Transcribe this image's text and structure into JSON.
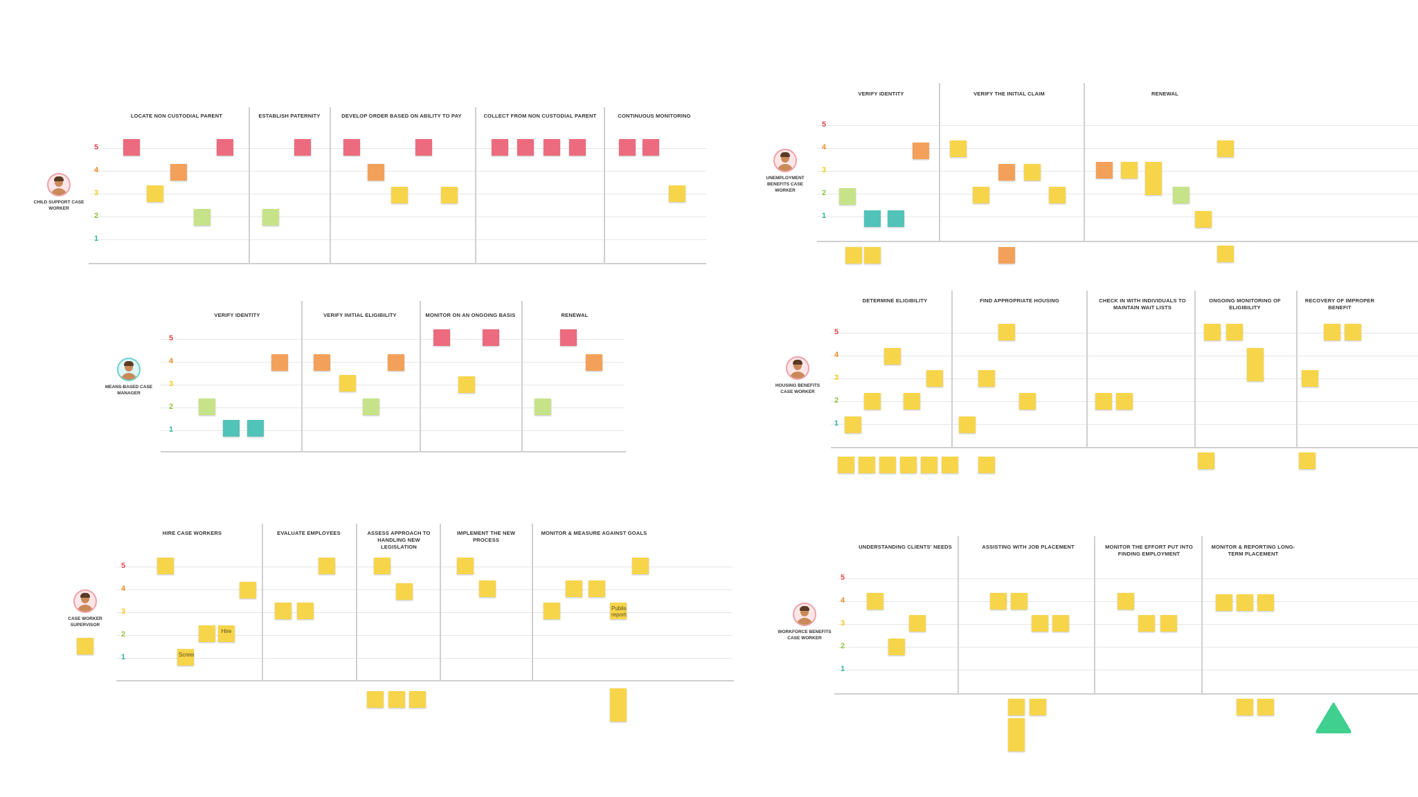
{
  "boards": {
    "b1": {
      "persona": "CHILD SUPPORT CASE WORKER",
      "stages": [
        "LOCATE NON CUSTODIAL PARENT",
        "ESTABLISH PATERNITY",
        "DEVELOP ORDER BASED ON ABILITY TO PAY",
        "COLLECT FROM NON CUSTODIAL PARENT",
        "CONTINUOUS MONITORING"
      ]
    },
    "b2": {
      "persona": "MEANS-BASED CASE MANAGER",
      "stages": [
        "VERIFY IDENTITY",
        "VERIFY INITIAL ELIGIBILITY",
        "MONITOR ON AN ONGOING BASIS",
        "RENEWAL"
      ]
    },
    "b3": {
      "persona": "CASE WORKER SUPERVISOR",
      "stages": [
        "HIRE CASE WORKERS",
        "EVALUATE EMPLOYEES",
        "ASSESS APPROACH TO HANDLING NEW LEGISLATION",
        "IMPLEMENT THE NEW PROCESS",
        "MONITOR & MEASURE AGAINST GOALS"
      ],
      "notes": {
        "hire": "Hire",
        "screen": "Screen",
        "publish": "Publish reports"
      }
    },
    "b4": {
      "persona": "UNEMPLOYMENT BENEFITS CASE WORKER",
      "stages": [
        "VERIFY IDENTITY",
        "VERIFY THE INITIAL CLAIM",
        "RENEWAL"
      ]
    },
    "b5": {
      "persona": "HOUSING BENEFITS CASE WORKER",
      "stages": [
        "DETERMINE ELIGIBILITY",
        "FIND APPROPRIATE HOUSING",
        "CHECK IN WITH INDIVIDUALS TO MAINTAIN WAIT LISTS",
        "ONGOING MONITORING OF ELIGIBILITY",
        "RECOVERY OF IMPROPER BENEFIT"
      ]
    },
    "b6": {
      "persona": "WORKFORCE BENEFITS CASE WORKER",
      "stages": [
        "UNDERSTANDING CLIENTS' NEEDS",
        "ASSISTING WITH JOB PLACEMENT",
        "MONITOR THE EFFORT PUT INTO FINDING EMPLOYMENT",
        "MONITOR & REPORTING LONG-TERM PLACEMENT"
      ]
    }
  },
  "scale": [
    "5",
    "4",
    "3",
    "2",
    "1"
  ],
  "colors": {
    "red": "#ec6b7e",
    "orange": "#f3a15a",
    "yellow": "#f7d54a",
    "green": "#c7e38a",
    "teal": "#52c3b8",
    "accent": "#3fcf8e"
  },
  "logo": "triangle-logo"
}
